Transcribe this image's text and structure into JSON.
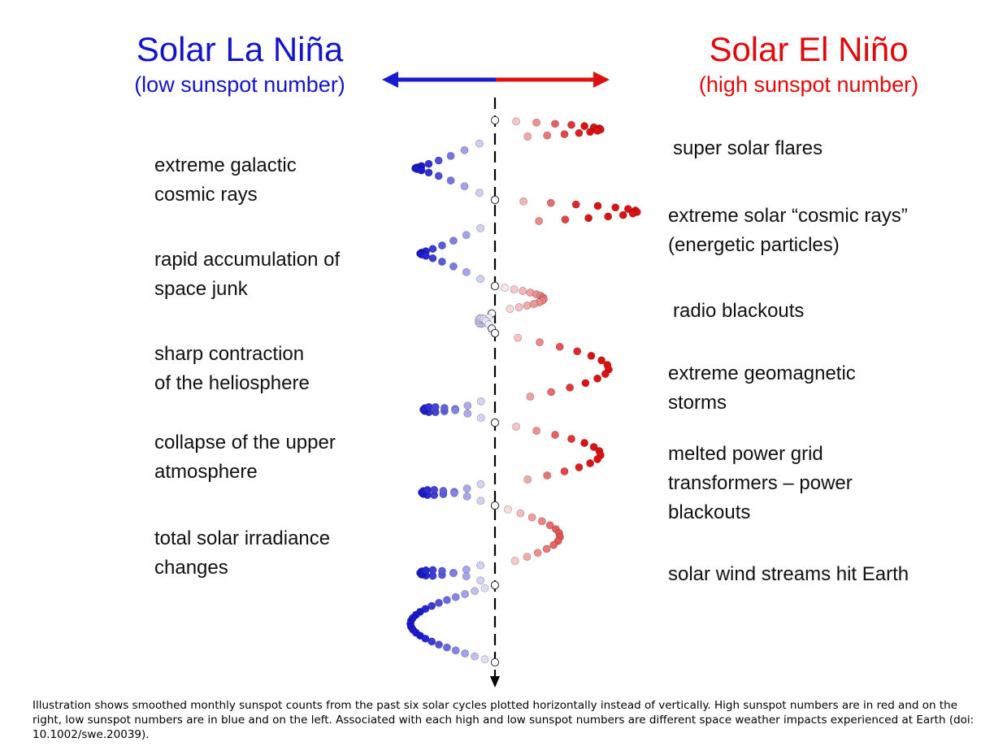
{
  "left_header": {
    "title": "Solar La Niña",
    "subtitle": "(low sunspot number)",
    "color": "#1515c8"
  },
  "right_header": {
    "title": "Solar El Niño",
    "subtitle": "(high sunspot number)",
    "color": "#e00a0a"
  },
  "left_impacts": [
    [
      "extreme galactic",
      "cosmic rays"
    ],
    [
      "rapid accumulation of",
      "space junk"
    ],
    [
      "sharp contraction",
      "of the heliosphere"
    ],
    [
      "collapse of the upper",
      "atmosphere"
    ],
    [
      "total solar irradiance",
      "changes"
    ]
  ],
  "right_impacts": [
    [
      "super solar flares"
    ],
    [
      "extreme solar “cosmic rays”",
      "(energetic particles)"
    ],
    [
      "radio blackouts"
    ],
    [
      "extreme geomagnetic",
      "storms"
    ],
    [
      "melted power grid",
      "transformers – power",
      "blackouts"
    ],
    [
      "solar wind streams hit Earth"
    ]
  ],
  "caption": "Illustration shows smoothed monthly sunspot counts from the past six solar cycles plotted horizontally instead of vertically.  High sunspot numbers are in red and on the right, low sunspot numbers are in blue and on the left. Associated with each high and low sunspot numbers are different space weather impacts experienced at Earth (doi: 10.1002/swe.20039).",
  "colors": {
    "low": "#1a1ad0",
    "high": "#dd1111",
    "neutral": "#ffffff",
    "axis": "#000000"
  }
}
